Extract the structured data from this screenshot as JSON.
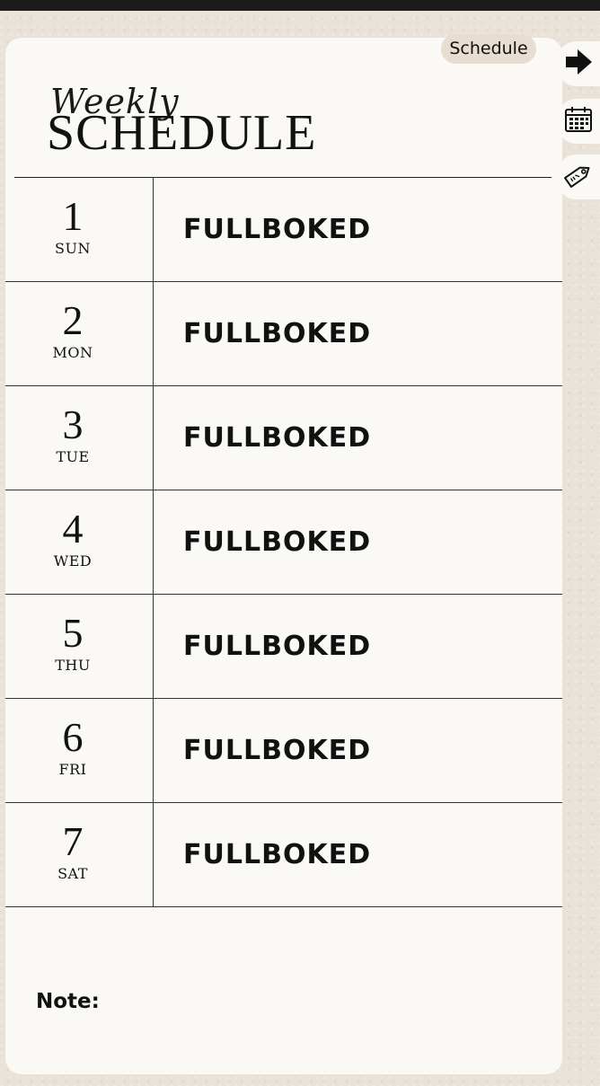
{
  "header": {
    "script_title": "Weekly",
    "main_title": "SCHEDULE",
    "tab_label": "Schedule"
  },
  "days": [
    {
      "number": "1",
      "name": "SUN",
      "status": "FULLBOKED"
    },
    {
      "number": "2",
      "name": "MON",
      "status": "FULLBOKED"
    },
    {
      "number": "3",
      "name": "TUE",
      "status": "FULLBOKED"
    },
    {
      "number": "4",
      "name": "WED",
      "status": "FULLBOKED"
    },
    {
      "number": "5",
      "name": "THU",
      "status": "FULLBOKED"
    },
    {
      "number": "6",
      "name": "FRI",
      "status": "FULLBOKED"
    },
    {
      "number": "7",
      "name": "SAT",
      "status": "FULLBOKED"
    }
  ],
  "note": {
    "label": "Note:"
  },
  "side_nav": [
    {
      "icon": "arrow-right-icon"
    },
    {
      "icon": "calendar-icon"
    },
    {
      "icon": "tag-icon"
    }
  ],
  "colors": {
    "background": "#e9e2d8",
    "card": "#fbf9f5",
    "tab": "#e7ddd1",
    "text": "#111111"
  }
}
